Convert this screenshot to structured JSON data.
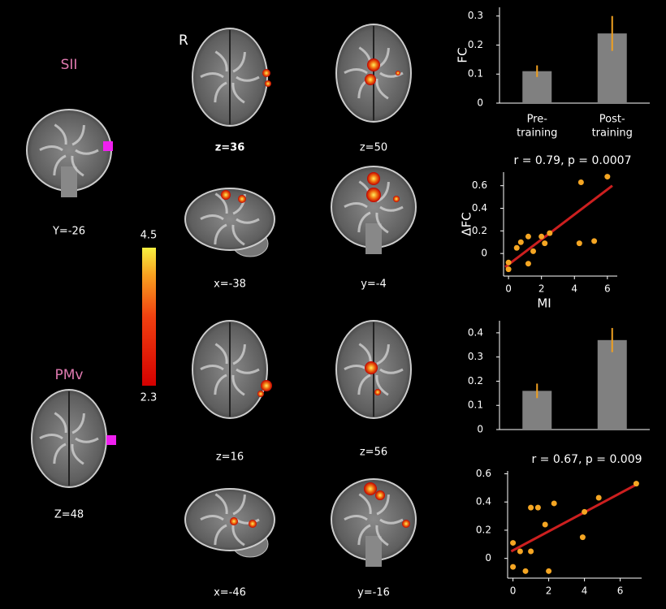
{
  "seeds": [
    {
      "name": "SII",
      "coord": "Y=-26"
    },
    {
      "name": "PMv",
      "coord": "Z=48"
    }
  ],
  "colorbar": {
    "max": 4.5,
    "min": 2.3
  },
  "orientation": "R",
  "slices": [
    "z=36",
    "z=50",
    "x=-38",
    "y=-4",
    "z=16",
    "z=56",
    "x=-46",
    "y=-16"
  ],
  "chart_data": [
    {
      "type": "bar",
      "ylabel": "FC",
      "categories": [
        [
          "Pre-",
          "training"
        ],
        [
          "Post-",
          "training"
        ]
      ],
      "values": [
        0.11,
        0.24
      ],
      "errors": [
        0.02,
        0.06
      ],
      "color": "#808080",
      "error_color": "#f0a020",
      "ylim": [
        0,
        0.33
      ],
      "yticks": [
        0,
        0.1,
        0.2,
        0.3
      ]
    },
    {
      "type": "scatter",
      "title": "r = 0.79, p = 0.0007",
      "xlabel": "MI",
      "ylabel": "ΔFC",
      "x": [
        0,
        0,
        0.5,
        0.75,
        1.2,
        1.2,
        1.5,
        2.0,
        2.2,
        2.5,
        4.4,
        4.3,
        5.2,
        6.0
      ],
      "values": [
        -0.14,
        -0.08,
        0.05,
        0.1,
        0.15,
        -0.09,
        0.02,
        0.15,
        0.09,
        0.18,
        0.63,
        0.09,
        0.11,
        0.68
      ],
      "color": "#f5a623",
      "fit": {
        "x": [
          -0.2,
          6.3
        ],
        "y": [
          -0.12,
          0.6
        ],
        "color": "#cc1f1f"
      },
      "xlim": [
        -0.3,
        6.6
      ],
      "ylim": [
        -0.2,
        0.72
      ],
      "xticks": [
        0,
        2,
        4,
        6
      ],
      "yticks": [
        0,
        0.2,
        0.4,
        0.6
      ]
    },
    {
      "type": "bar",
      "categories": [
        null,
        null
      ],
      "values": [
        0.16,
        0.37
      ],
      "errors": [
        0.03,
        0.05
      ],
      "color": "#808080",
      "error_color": "#f0a020",
      "ylim": [
        0,
        0.45
      ],
      "yticks": [
        0,
        0.1,
        0.2,
        0.3,
        0.4
      ]
    },
    {
      "type": "scatter",
      "title": "r = 0.67, p = 0.009",
      "x": [
        0,
        0,
        0.4,
        0.7,
        1.0,
        1.0,
        1.4,
        1.8,
        2.0,
        2.3,
        4.0,
        3.9,
        4.8,
        6.9
      ],
      "values": [
        0.11,
        -0.06,
        0.05,
        -0.09,
        0.05,
        0.36,
        0.36,
        0.24,
        -0.09,
        0.39,
        0.33,
        0.15,
        0.43,
        0.53
      ],
      "color": "#f5a623",
      "fit": {
        "x": [
          -0.1,
          7.0
        ],
        "y": [
          0.05,
          0.53
        ],
        "color": "#cc1f1f"
      },
      "xlim": [
        -0.3,
        7.2
      ],
      "ylim": [
        -0.14,
        0.62
      ],
      "xticks": [
        0,
        2,
        4,
        6
      ],
      "yticks": [
        0,
        0.2,
        0.4,
        0.6
      ]
    }
  ]
}
